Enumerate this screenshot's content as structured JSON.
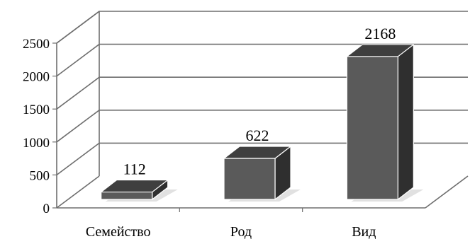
{
  "chart_data": {
    "type": "bar",
    "style": "3d-column",
    "categories": [
      "Семейство",
      "Род",
      "Вид"
    ],
    "values": [
      112,
      622,
      2168
    ],
    "data_labels": [
      "112",
      "622",
      "2168"
    ],
    "ylim": [
      0,
      2500
    ],
    "yticks": [
      0,
      500,
      1000,
      1500,
      2000,
      2500
    ],
    "ytick_labels": [
      "0",
      "500",
      "1000",
      "1500",
      "2000",
      "2500"
    ],
    "title": "",
    "xlabel": "",
    "ylabel": "",
    "grid": true,
    "legend": "none",
    "colors": {
      "bar_front": "#5a5a5a",
      "bar_side": "#2f2f2f",
      "bar_top": "#3f3f3f",
      "grid": "#6e6e6e",
      "text": "#000000"
    }
  }
}
